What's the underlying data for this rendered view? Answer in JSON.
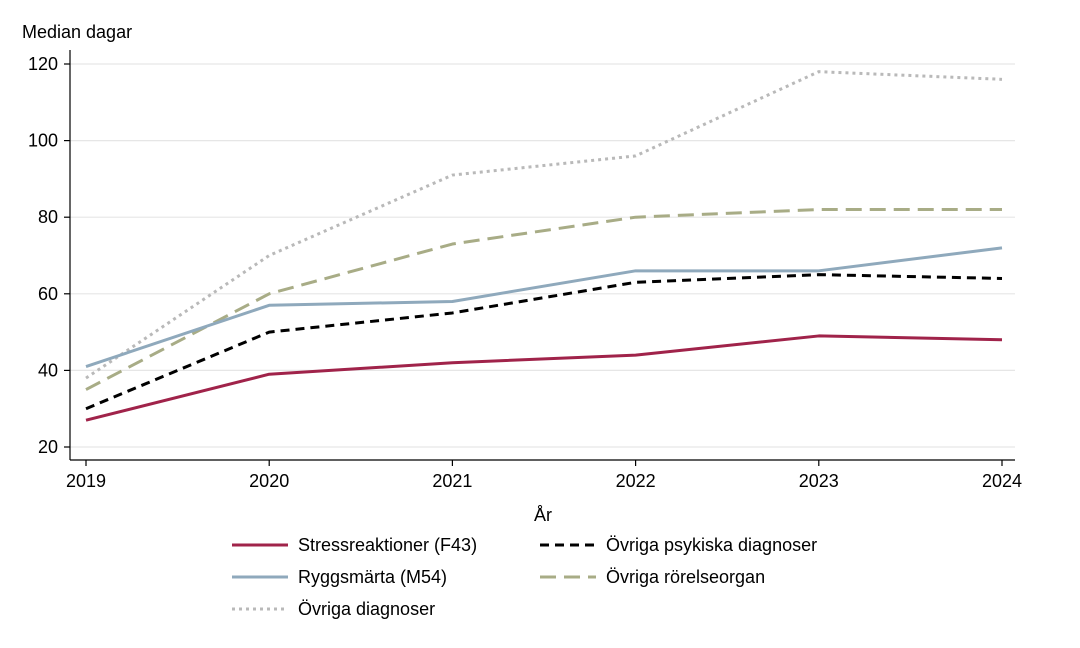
{
  "chart_data": {
    "type": "line",
    "ylabel": "Median dagar",
    "xlabel": "År",
    "x": [
      2019,
      2020,
      2021,
      2022,
      2023,
      2024
    ],
    "ylim": [
      20,
      120
    ],
    "xlim": [
      2019,
      2024
    ],
    "yticks": [
      20,
      40,
      60,
      80,
      100,
      120
    ],
    "grid": "horizontal",
    "legend_placement": "bottom",
    "series": [
      {
        "name": "Stressreaktioner (F43)",
        "values": [
          27,
          39,
          42,
          44,
          49,
          48
        ],
        "color": "#a0234a",
        "style": "solid"
      },
      {
        "name": "Övriga psykiska diagnoser",
        "values": [
          30,
          50,
          55,
          63,
          65,
          64
        ],
        "color": "#000000",
        "style": "dashed"
      },
      {
        "name": "Ryggsmärta (M54)",
        "values": [
          41,
          57,
          58,
          66,
          66,
          72
        ],
        "color": "#8fa9bc",
        "style": "solid"
      },
      {
        "name": "Övriga rörelseorgan",
        "values": [
          35,
          60,
          73,
          80,
          82,
          82
        ],
        "color": "#a8ac86",
        "style": "longdash"
      },
      {
        "name": "Övriga diagnoser",
        "values": [
          38,
          70,
          91,
          96,
          118,
          116
        ],
        "color": "#b9b9b9",
        "style": "dotted"
      }
    ]
  }
}
